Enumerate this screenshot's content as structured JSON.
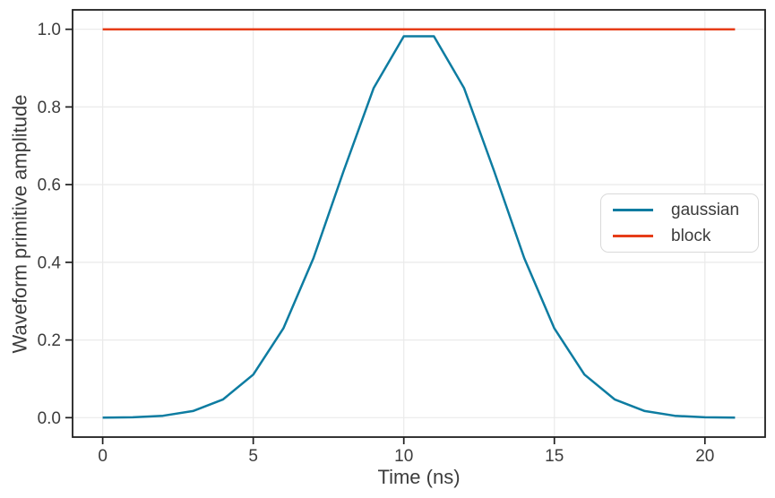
{
  "chart_data": {
    "type": "line",
    "title": "",
    "xlabel": "Time (ns)",
    "ylabel": "Waveform primitive amplitude",
    "xlim": [
      -1.0,
      22.0
    ],
    "ylim": [
      -0.05,
      1.05
    ],
    "x_ticks": [
      0,
      5,
      10,
      15,
      20
    ],
    "y_ticks": [
      0.0,
      0.2,
      0.4,
      0.6,
      0.8,
      1.0
    ],
    "y_tick_labels": [
      "0.0",
      "0.2",
      "0.4",
      "0.6",
      "0.8",
      "1.0"
    ],
    "grid": true,
    "legend_position": "center right",
    "x": [
      0,
      1,
      2,
      3,
      4,
      5,
      6,
      7,
      8,
      9,
      10,
      11,
      12,
      13,
      14,
      15,
      16,
      17,
      18,
      19,
      20,
      21
    ],
    "series": [
      {
        "name": "gaussian",
        "color": "#0d7ca1",
        "values": [
          0.0,
          0.001,
          0.005,
          0.017,
          0.047,
          0.111,
          0.23,
          0.411,
          0.635,
          0.849,
          0.982,
          0.982,
          0.849,
          0.635,
          0.411,
          0.23,
          0.111,
          0.047,
          0.017,
          0.005,
          0.001,
          0.0
        ]
      },
      {
        "name": "block",
        "color": "#e63d18",
        "values": [
          1,
          1,
          1,
          1,
          1,
          1,
          1,
          1,
          1,
          1,
          1,
          1,
          1,
          1,
          1,
          1,
          1,
          1,
          1,
          1,
          1,
          1
        ]
      }
    ],
    "colors": {
      "grid": "#eaeaea",
      "spine": "#1f1f1f",
      "text": "#3c3c3c",
      "background": "#ffffff"
    }
  }
}
